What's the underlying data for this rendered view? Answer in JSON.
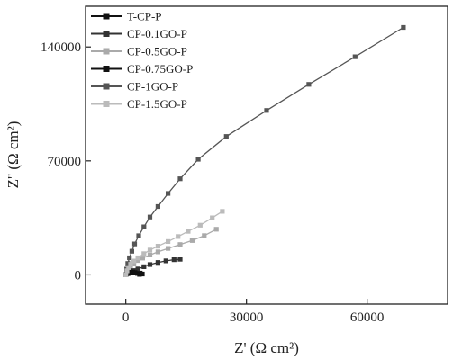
{
  "chart_data": {
    "type": "scatter",
    "title": "",
    "xlabel": "Z' (Ω cm²)",
    "ylabel": "Z'' (Ω cm²)",
    "xlim": [
      -10000,
      80000
    ],
    "ylim": [
      -18000,
      165000
    ],
    "x_ticks": [
      0,
      30000,
      60000
    ],
    "x_tick_labels": [
      "0",
      "30000",
      "60000"
    ],
    "y_ticks": [
      0,
      70000,
      140000
    ],
    "y_tick_labels": [
      "0",
      "70000",
      "140000"
    ],
    "grid": false,
    "legend_position": "top-left",
    "series": [
      {
        "name": "T-CP-P",
        "color": "#111111",
        "x": [
          0,
          600,
          1200,
          1800,
          2400,
          3000,
          3600,
          4100
        ],
        "y": [
          0,
          900,
          1400,
          1700,
          1800,
          1600,
          1100,
          500
        ]
      },
      {
        "name": "CP-0.1GO-P",
        "color": "#333333",
        "x": [
          0,
          500,
          1000,
          2000,
          3000,
          4500,
          6000,
          8000,
          10000,
          12000,
          13500
        ],
        "y": [
          0,
          800,
          1500,
          2600,
          3600,
          5000,
          6300,
          7600,
          8600,
          9300,
          9600
        ]
      },
      {
        "name": "CP-0.5GO-P",
        "color": "#aaaaaa",
        "x": [
          0,
          300,
          700,
          1200,
          2000,
          3000,
          4200,
          6000,
          8000,
          10500,
          13500,
          16500,
          19500,
          22500
        ],
        "y": [
          0,
          2200,
          4000,
          5600,
          7200,
          8800,
          10300,
          12200,
          14100,
          16200,
          18600,
          21100,
          24100,
          28000
        ]
      },
      {
        "name": "CP-0.75GO-P",
        "color": "#111111",
        "x": [
          0,
          200,
          450,
          800,
          1200,
          1700,
          2300,
          2900,
          3400
        ],
        "y": [
          0,
          600,
          1100,
          1500,
          1700,
          1700,
          1400,
          900,
          300
        ]
      },
      {
        "name": "CP-1GO-P",
        "color": "#555555",
        "x": [
          0,
          200,
          500,
          900,
          1500,
          2200,
          3200,
          4500,
          6000,
          8000,
          10500,
          13500,
          18000,
          25000,
          35000,
          45500,
          57000,
          69000
        ],
        "y": [
          0,
          3500,
          7000,
          10500,
          14500,
          19000,
          24000,
          29500,
          35500,
          42000,
          50000,
          59000,
          71000,
          85000,
          101000,
          117000,
          134000,
          152000
        ]
      },
      {
        "name": "CP-1.5GO-P",
        "color": "#bbbbbb",
        "x": [
          0,
          300,
          700,
          1200,
          2000,
          3000,
          4500,
          6000,
          8000,
          10500,
          13000,
          15500,
          18500,
          21500,
          24000
        ],
        "y": [
          0,
          2500,
          4500,
          6500,
          8500,
          10500,
          13000,
          15200,
          17600,
          20500,
          23500,
          26700,
          30500,
          35000,
          39000
        ]
      }
    ]
  }
}
